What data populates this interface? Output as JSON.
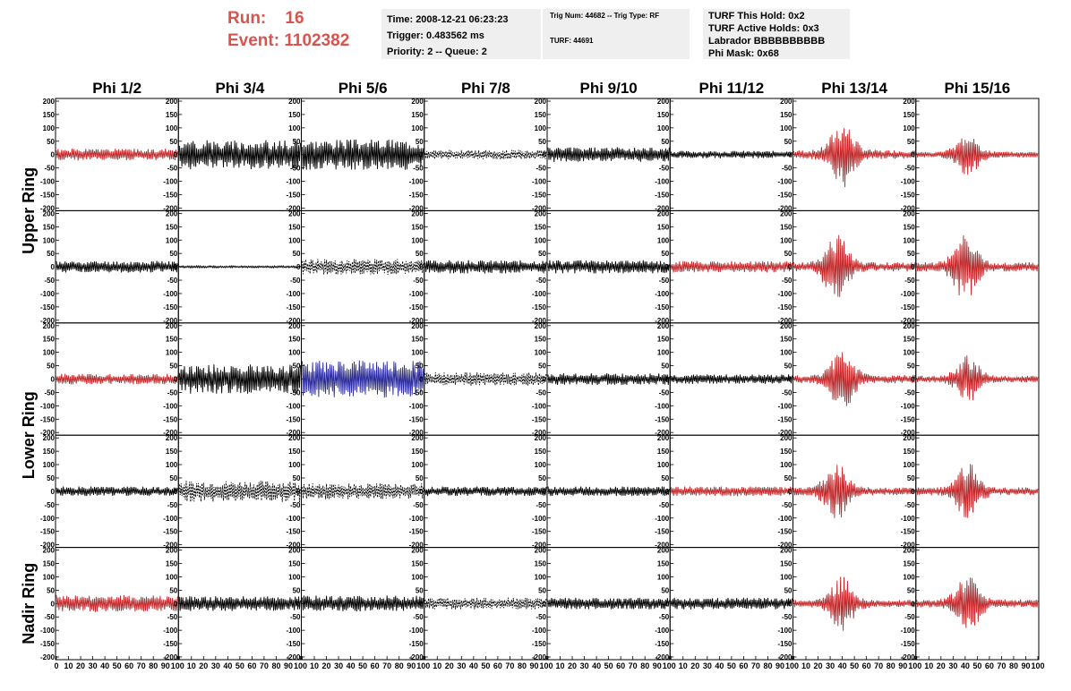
{
  "header": {
    "run_label": "Run:",
    "run_value": "16",
    "event_label": "Event:",
    "event_value": "1102382",
    "accent_color": "#d9534f"
  },
  "info_time": {
    "time": "Time: 2008-12-21 06:23:23",
    "trigger": "Trigger: 0.483562 ms",
    "priority": "Priority: 2 -- Queue: 2"
  },
  "info_trig": {
    "trig": "Trig Num: 44682 -- Trig Type: RF",
    "turf": "TURF: 44691"
  },
  "info_turf": {
    "hold": "TURF This Hold: 0x2",
    "active": "TURF Active Holds: 0x3",
    "labrador": "Labrador BBBBBBBBBB",
    "phimask": "Phi Mask: 0x68"
  },
  "chart_data": {
    "type": "line",
    "columns": [
      "Phi 1/2",
      "Phi 3/4",
      "Phi 5/6",
      "Phi 7/8",
      "Phi 9/10",
      "Phi 11/12",
      "Phi 13/14",
      "Phi 15/16"
    ],
    "ring_labels": [
      "Upper Ring",
      "Lower Ring",
      "Nadir Ring"
    ],
    "y_ticks": [
      "200",
      "150",
      "100",
      "50",
      "0",
      "-50",
      "-100",
      "-150",
      "-200"
    ],
    "ylim": [
      -200,
      200
    ],
    "x_ticks": [
      "0",
      "10",
      "20",
      "30",
      "40",
      "50",
      "60",
      "70",
      "80",
      "90",
      "100"
    ],
    "xlim": [
      0,
      100
    ],
    "colors": {
      "black": "#000000",
      "red": "#c0282a",
      "blue": "#2a2a9c"
    },
    "traces": [
      [
        {
          "color": "red",
          "style": "solid",
          "amp": 22,
          "burst": 0,
          "seed": 1
        },
        {
          "color": "black",
          "style": "solid",
          "amp": 55,
          "burst": 0,
          "seed": 2
        },
        {
          "color": "black",
          "style": "solid",
          "amp": 58,
          "burst": 0,
          "seed": 3
        },
        {
          "color": "black",
          "style": "dashed",
          "amp": 18,
          "burst": 0,
          "seed": 4
        },
        {
          "color": "black",
          "style": "solid",
          "amp": 28,
          "burst": 0,
          "seed": 5
        },
        {
          "color": "black",
          "style": "solid",
          "amp": 14,
          "burst": 0,
          "seed": 6
        },
        {
          "color": "red",
          "style": "solid",
          "amp": 35,
          "burst": 40,
          "seed": 7
        },
        {
          "color": "red",
          "style": "solid",
          "amp": 22,
          "burst": 42,
          "seed": 8
        }
      ],
      [
        {
          "color": "black",
          "style": "solid",
          "amp": 22,
          "burst": 0,
          "seed": 11
        },
        {
          "color": "black",
          "style": "solid",
          "amp": 4,
          "burst": 0,
          "seed": 12
        },
        {
          "color": "black",
          "style": "dashed",
          "amp": 30,
          "burst": 0,
          "seed": 13
        },
        {
          "color": "black",
          "style": "solid",
          "amp": 25,
          "burst": 0,
          "seed": 14
        },
        {
          "color": "black",
          "style": "solid",
          "amp": 25,
          "burst": 0,
          "seed": 15
        },
        {
          "color": "red",
          "style": "solid",
          "amp": 22,
          "burst": 0,
          "seed": 16
        },
        {
          "color": "red",
          "style": "solid",
          "amp": 35,
          "burst": 35,
          "seed": 17
        },
        {
          "color": "red",
          "style": "solid",
          "amp": 35,
          "burst": 40,
          "seed": 18
        }
      ],
      [
        {
          "color": "red",
          "style": "solid",
          "amp": 20,
          "burst": 0,
          "seed": 21
        },
        {
          "color": "black",
          "style": "solid",
          "amp": 55,
          "burst": 0,
          "seed": 22
        },
        {
          "color": "blue",
          "style": "solid",
          "amp": 70,
          "burst": 0,
          "seed": 23
        },
        {
          "color": "black",
          "style": "dashed",
          "amp": 25,
          "burst": 0,
          "seed": 24
        },
        {
          "color": "black",
          "style": "solid",
          "amp": 22,
          "burst": 0,
          "seed": 25
        },
        {
          "color": "black",
          "style": "solid",
          "amp": 18,
          "burst": 0,
          "seed": 26
        },
        {
          "color": "red",
          "style": "solid",
          "amp": 32,
          "burst": 40,
          "seed": 27
        },
        {
          "color": "red",
          "style": "solid",
          "amp": 25,
          "burst": 42,
          "seed": 28
        }
      ],
      [
        {
          "color": "black",
          "style": "solid",
          "amp": 18,
          "burst": 0,
          "seed": 31
        },
        {
          "color": "black",
          "style": "dashed",
          "amp": 40,
          "burst": 0,
          "seed": 32
        },
        {
          "color": "black",
          "style": "dashed",
          "amp": 30,
          "burst": 0,
          "seed": 33
        },
        {
          "color": "black",
          "style": "solid",
          "amp": 18,
          "burst": 0,
          "seed": 34
        },
        {
          "color": "black",
          "style": "solid",
          "amp": 18,
          "burst": 0,
          "seed": 35
        },
        {
          "color": "red",
          "style": "solid",
          "amp": 18,
          "burst": 0,
          "seed": 36
        },
        {
          "color": "red",
          "style": "solid",
          "amp": 30,
          "burst": 35,
          "seed": 37
        },
        {
          "color": "red",
          "style": "solid",
          "amp": 30,
          "burst": 42,
          "seed": 38
        }
      ],
      [
        {
          "color": "red",
          "style": "solid",
          "amp": 32,
          "burst": 0,
          "seed": 41
        },
        {
          "color": "black",
          "style": "solid",
          "amp": 28,
          "burst": 0,
          "seed": 42
        },
        {
          "color": "black",
          "style": "solid",
          "amp": 30,
          "burst": 0,
          "seed": 43
        },
        {
          "color": "black",
          "style": "dashed",
          "amp": 22,
          "burst": 0,
          "seed": 44
        },
        {
          "color": "black",
          "style": "solid",
          "amp": 22,
          "burst": 0,
          "seed": 45
        },
        {
          "color": "black",
          "style": "solid",
          "amp": 22,
          "burst": 0,
          "seed": 46
        },
        {
          "color": "red",
          "style": "solid",
          "amp": 28,
          "burst": 40,
          "seed": 47
        },
        {
          "color": "red",
          "style": "solid",
          "amp": 32,
          "burst": 42,
          "seed": 48
        }
      ]
    ]
  }
}
